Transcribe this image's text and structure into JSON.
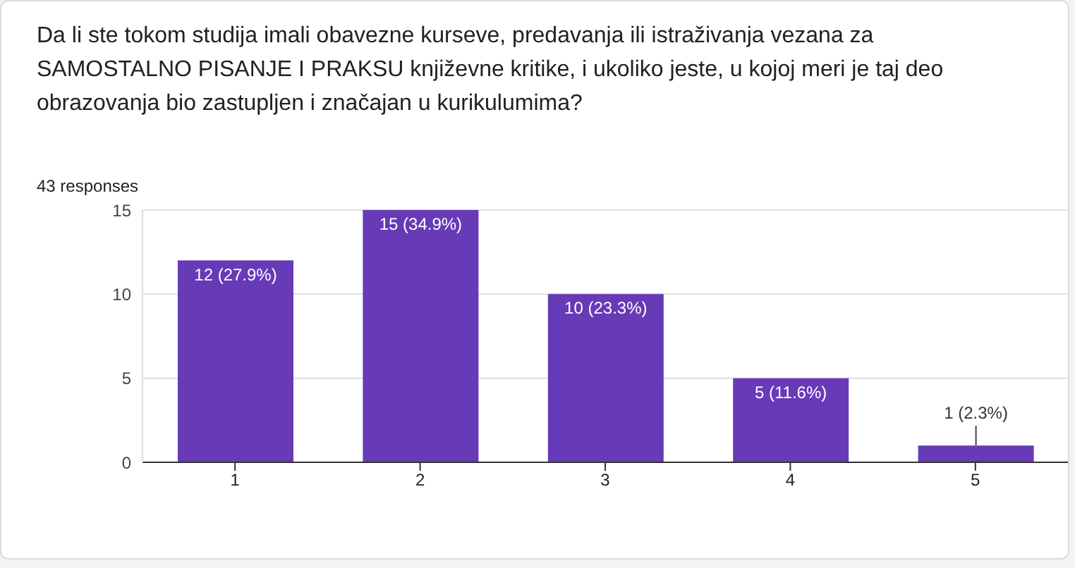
{
  "chart_data": {
    "type": "bar",
    "title": "Da li ste tokom studija imali obavezne kurseve, predavanja ili istraživanja vezana za SAMOSTALNO PISANJE I PRAKSU književne kritike, i ukoliko jeste, u kojoj meri je taj deo obrazovanja bio zastupljen i značajan u kurikulumima?",
    "subtitle": "43 responses",
    "categories": [
      "1",
      "2",
      "3",
      "4",
      "5"
    ],
    "values": [
      12,
      15,
      10,
      5,
      1
    ],
    "value_labels": [
      "12 (27.9%)",
      "15 (34.9%)",
      "10 (23.3%)",
      "5 (11.6%)",
      "1 (2.3%)"
    ],
    "color": "#673ab7",
    "ylim": [
      0,
      15
    ],
    "yticks": [
      0,
      5,
      10,
      15
    ],
    "grid": "y",
    "legend": false
  }
}
